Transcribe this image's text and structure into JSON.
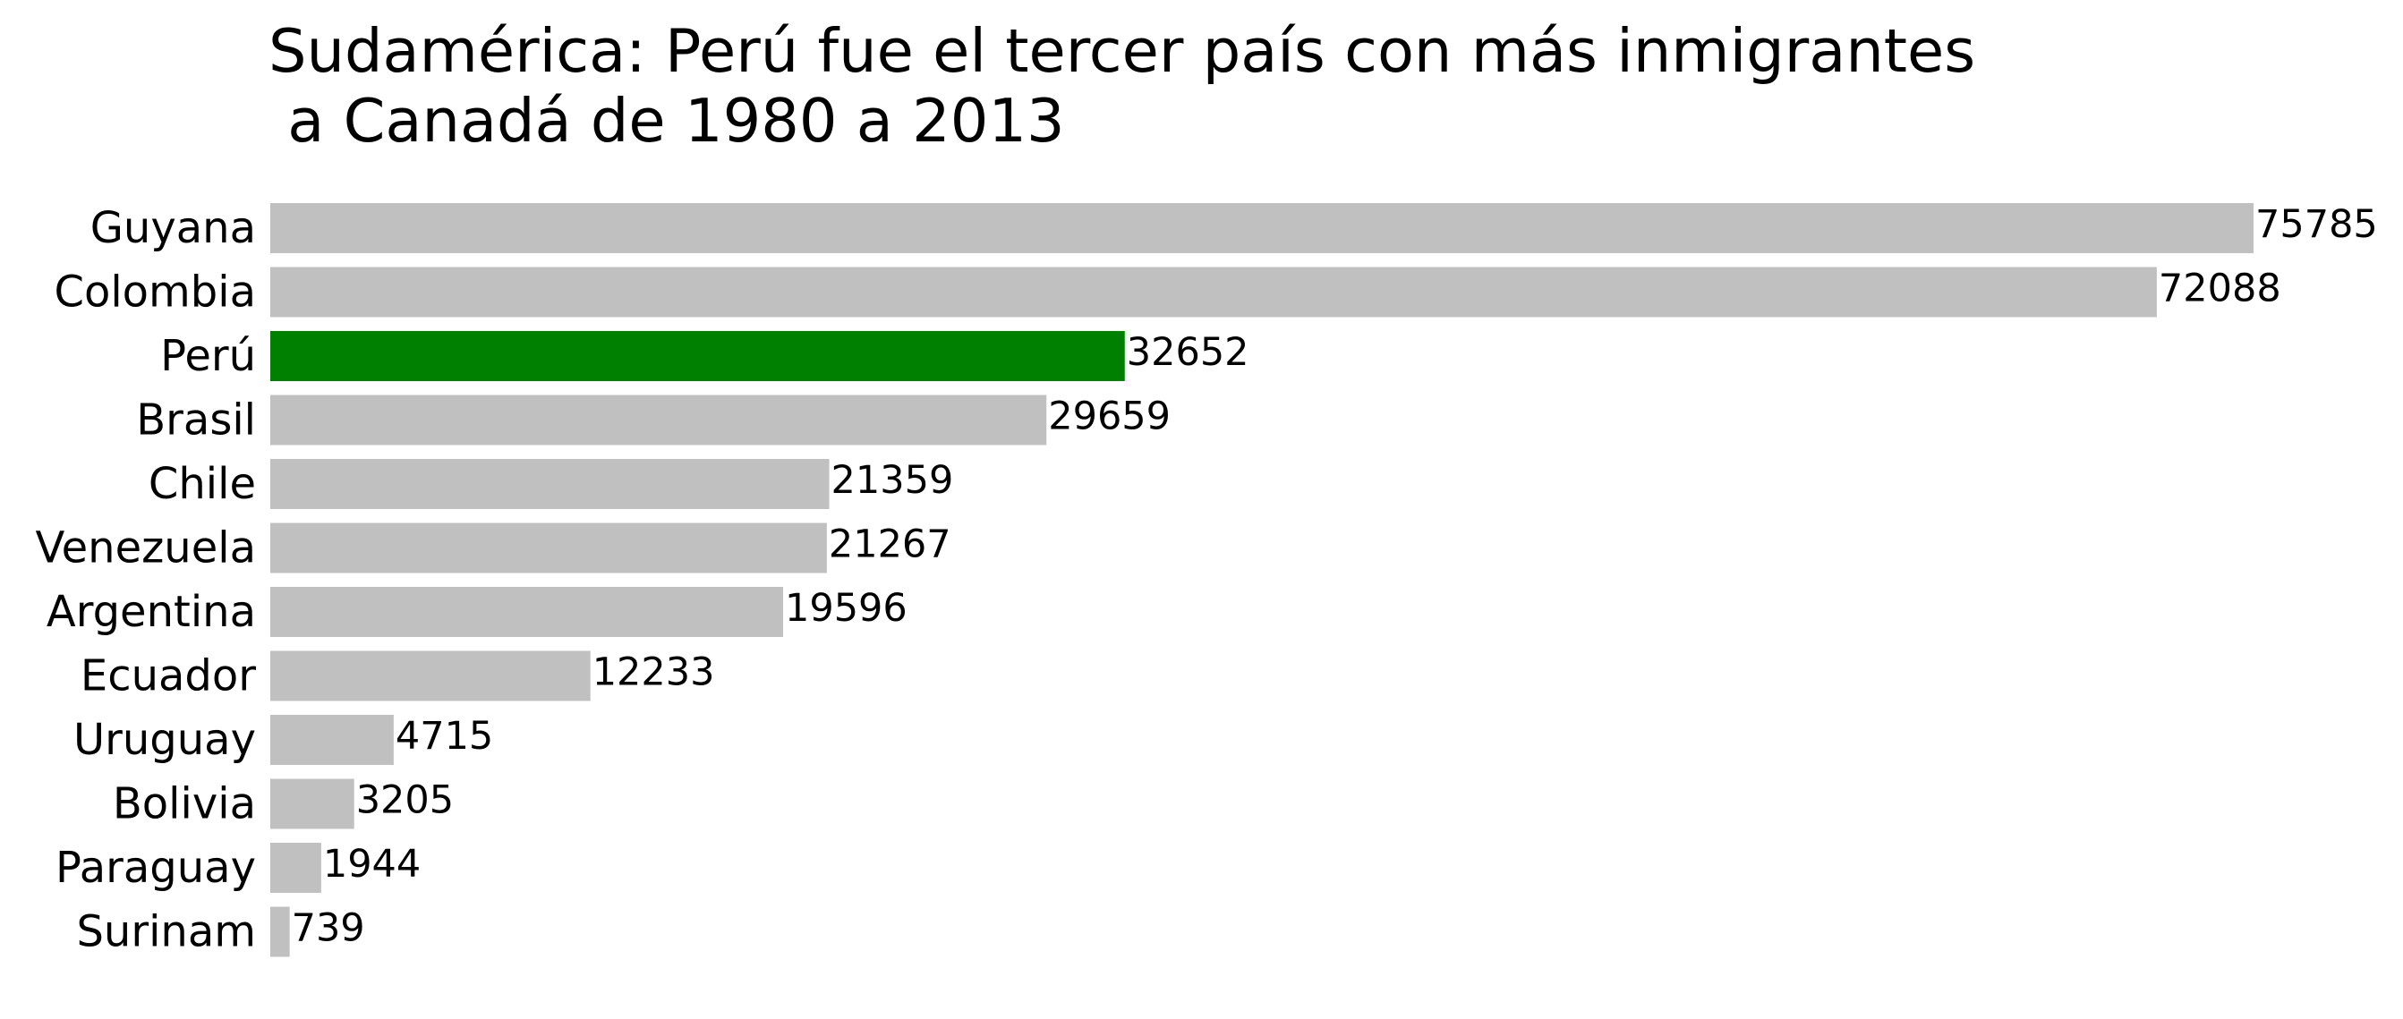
{
  "chart_data": {
    "type": "bar",
    "orientation": "horizontal",
    "title": "Sudamérica: Perú fue el tercer país con más inmigrantes\n a Canadá de 1980 a 2013",
    "xlabel": "",
    "ylabel": "",
    "categories": [
      "Guyana",
      "Colombia",
      "Perú",
      "Brasil",
      "Chile",
      "Venezuela",
      "Argentina",
      "Ecuador",
      "Uruguay",
      "Bolivia",
      "Paraguay",
      "Surinam"
    ],
    "values": [
      75785,
      72088,
      32652,
      29659,
      21359,
      21267,
      19596,
      12233,
      4715,
      3205,
      1944,
      739
    ],
    "value_labels": [
      "75785",
      "72088",
      "32652",
      "29659",
      "21359",
      "21267",
      "19596",
      "12233",
      "4715",
      "3205",
      "1944",
      "739"
    ],
    "xlim": [
      0,
      75785
    ],
    "highlight_category": "Perú",
    "colors": {
      "default": "#c0c0c0",
      "highlight": "#008000"
    },
    "grid": false,
    "axes_visible": false,
    "legend": "none"
  }
}
